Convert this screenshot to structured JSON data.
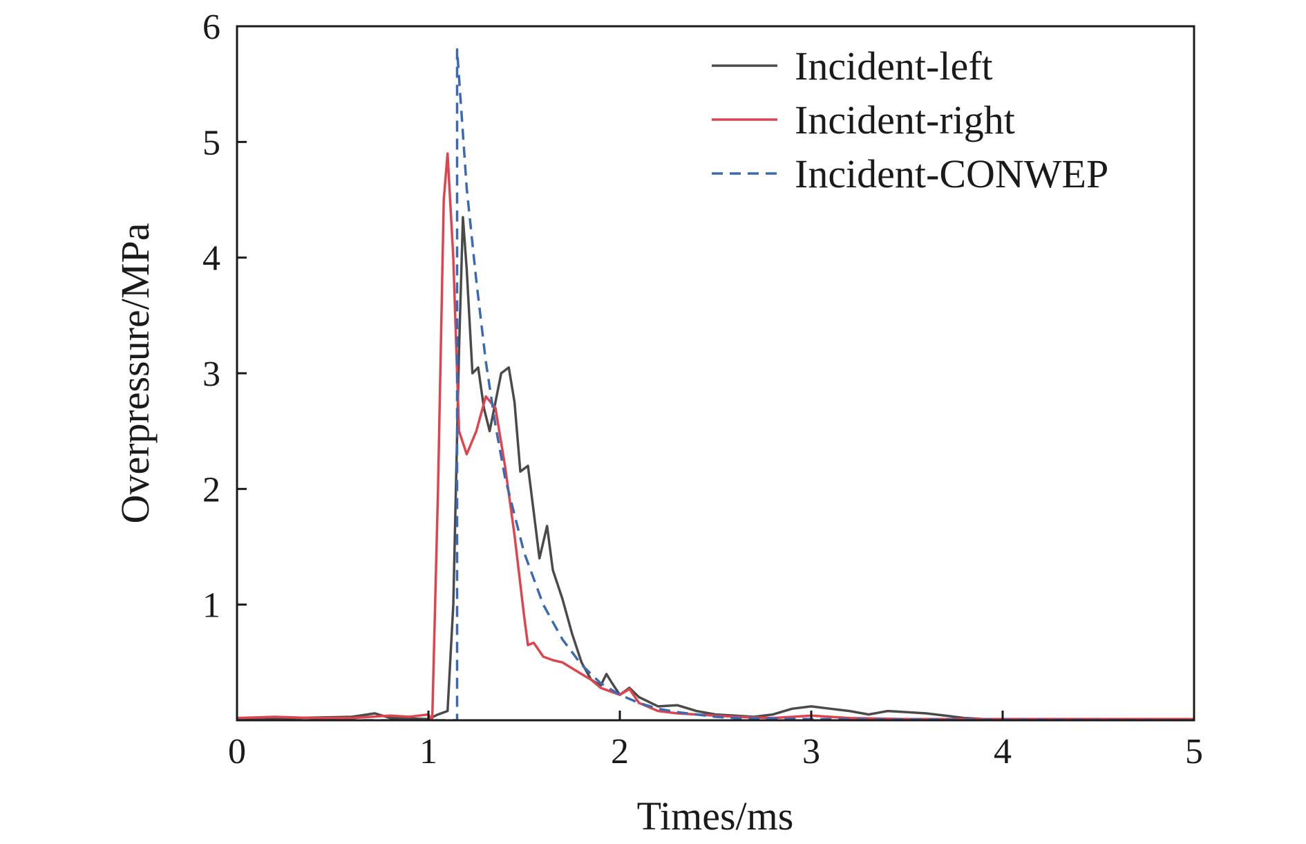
{
  "chart_data": {
    "type": "line",
    "title": "",
    "xlabel": "Times/ms",
    "ylabel": "Overpressure/MPa",
    "xlim": [
      0,
      5
    ],
    "ylim": [
      0,
      6
    ],
    "xticks": [
      0,
      1,
      2,
      3,
      4,
      5
    ],
    "yticks": [
      1,
      2,
      3,
      4,
      5,
      6
    ],
    "grid": false,
    "legend_position": "top-right",
    "series": [
      {
        "name": "Incident-left",
        "color": "#4a4a4a",
        "dash": "solid",
        "x": [
          0,
          0.3,
          0.6,
          0.72,
          0.8,
          1.0,
          1.05,
          1.1,
          1.13,
          1.16,
          1.18,
          1.2,
          1.23,
          1.26,
          1.29,
          1.32,
          1.35,
          1.38,
          1.42,
          1.45,
          1.48,
          1.52,
          1.55,
          1.58,
          1.62,
          1.65,
          1.7,
          1.75,
          1.8,
          1.85,
          1.9,
          1.93,
          1.96,
          2.0,
          2.05,
          2.1,
          2.2,
          2.3,
          2.4,
          2.5,
          2.6,
          2.7,
          2.8,
          2.9,
          3.0,
          3.1,
          3.2,
          3.3,
          3.4,
          3.5,
          3.6,
          3.7,
          3.8,
          3.9,
          4.0,
          5.0
        ],
        "y": [
          0.02,
          0.02,
          0.03,
          0.06,
          0.02,
          0.01,
          0.05,
          0.08,
          1.0,
          3.2,
          4.35,
          3.9,
          3.0,
          3.05,
          2.7,
          2.5,
          2.75,
          3.0,
          3.05,
          2.75,
          2.15,
          2.2,
          1.8,
          1.4,
          1.68,
          1.3,
          1.05,
          0.75,
          0.5,
          0.35,
          0.3,
          0.4,
          0.32,
          0.22,
          0.28,
          0.2,
          0.12,
          0.13,
          0.08,
          0.05,
          0.04,
          0.03,
          0.05,
          0.1,
          0.12,
          0.1,
          0.08,
          0.05,
          0.08,
          0.07,
          0.06,
          0.04,
          0.02,
          0.01,
          0.01,
          0.01
        ]
      },
      {
        "name": "Incident-right",
        "color": "#e0434e",
        "dash": "solid",
        "x": [
          0,
          0.2,
          0.4,
          0.6,
          0.8,
          0.9,
          0.95,
          1.0,
          1.02,
          1.05,
          1.08,
          1.1,
          1.13,
          1.16,
          1.2,
          1.25,
          1.3,
          1.35,
          1.4,
          1.45,
          1.5,
          1.52,
          1.55,
          1.6,
          1.65,
          1.7,
          1.75,
          1.8,
          1.85,
          1.9,
          1.95,
          2.0,
          2.05,
          2.1,
          2.2,
          2.3,
          2.4,
          2.5,
          2.6,
          2.8,
          3.0,
          3.2,
          3.5,
          4.0,
          5.0
        ],
        "y": [
          0.02,
          0.03,
          0.02,
          0.02,
          0.04,
          0.03,
          0.04,
          0.05,
          0.0,
          2.0,
          4.5,
          4.9,
          4.0,
          2.5,
          2.3,
          2.5,
          2.8,
          2.7,
          2.2,
          1.6,
          0.9,
          0.65,
          0.67,
          0.55,
          0.52,
          0.5,
          0.45,
          0.4,
          0.35,
          0.28,
          0.25,
          0.22,
          0.27,
          0.15,
          0.08,
          0.06,
          0.05,
          0.04,
          0.03,
          0.02,
          0.04,
          0.02,
          0.01,
          0.01,
          0.01
        ]
      },
      {
        "name": "Incident-CONWEP",
        "color": "#3b6ab3",
        "dash": "dashed",
        "x": [
          0,
          1.15,
          1.15,
          1.2,
          1.25,
          1.3,
          1.35,
          1.4,
          1.5,
          1.6,
          1.7,
          1.8,
          1.9,
          2.0,
          2.1,
          2.2,
          2.3,
          2.4,
          2.5,
          2.6,
          3.0,
          5.0
        ],
        "y": [
          0.0,
          0.0,
          5.8,
          4.6,
          3.8,
          3.1,
          2.55,
          2.1,
          1.45,
          1.0,
          0.7,
          0.48,
          0.32,
          0.22,
          0.15,
          0.1,
          0.07,
          0.05,
          0.03,
          0.02,
          0.01,
          0.0
        ]
      }
    ]
  }
}
